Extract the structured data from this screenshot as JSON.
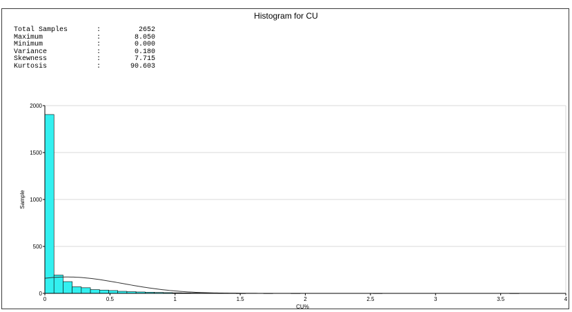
{
  "title": "Histogram for CU",
  "stats": [
    {
      "label": "Total Samples",
      "value": "2652"
    },
    {
      "label": "Maximum",
      "value": "8.050"
    },
    {
      "label": "Minimum",
      "value": "0.000"
    },
    {
      "label": "Variance",
      "value": "0.180"
    },
    {
      "label": "Skewness",
      "value": "7.715"
    },
    {
      "label": "Kurtosis",
      "value": "90.603"
    }
  ],
  "colors": {
    "bar_fill": "#33f0f0",
    "bar_stroke": "#000000",
    "grid": "#d8d8d8",
    "curve": "#333333"
  },
  "chart_data": {
    "type": "bar",
    "title": "Histogram for CU",
    "xlabel": "CU%",
    "ylabel": "Sample",
    "xlim": [
      0,
      4
    ],
    "ylim": [
      0,
      2000
    ],
    "x_ticks": [
      "0",
      "0.5",
      "1",
      "1.5",
      "2",
      "2.5",
      "3",
      "3.5",
      "4"
    ],
    "y_ticks": [
      "0",
      "500",
      "1000",
      "1500",
      "2000"
    ],
    "grid": true,
    "bin_width": 0.07,
    "bins": [
      {
        "x0": 0.0,
        "count": 1905
      },
      {
        "x0": 0.07,
        "count": 195
      },
      {
        "x0": 0.14,
        "count": 125
      },
      {
        "x0": 0.21,
        "count": 70
      },
      {
        "x0": 0.28,
        "count": 60
      },
      {
        "x0": 0.35,
        "count": 40
      },
      {
        "x0": 0.42,
        "count": 35
      },
      {
        "x0": 0.49,
        "count": 30
      },
      {
        "x0": 0.56,
        "count": 22
      },
      {
        "x0": 0.63,
        "count": 18
      },
      {
        "x0": 0.7,
        "count": 15
      },
      {
        "x0": 0.77,
        "count": 12
      },
      {
        "x0": 0.84,
        "count": 10
      },
      {
        "x0": 0.91,
        "count": 8
      },
      {
        "x0": 0.98,
        "count": 6
      },
      {
        "x0": 1.05,
        "count": 5
      },
      {
        "x0": 1.12,
        "count": 4
      },
      {
        "x0": 1.19,
        "count": 3
      },
      {
        "x0": 1.26,
        "count": 3
      },
      {
        "x0": 1.33,
        "count": 2
      },
      {
        "x0": 1.4,
        "count": 2
      },
      {
        "x0": 1.47,
        "count": 1
      },
      {
        "x0": 1.68,
        "count": 1
      },
      {
        "x0": 1.89,
        "count": 1
      },
      {
        "x0": 2.52,
        "count": 1
      },
      {
        "x0": 3.57,
        "count": 1
      }
    ],
    "normal_curve": {
      "mean": 0.17,
      "std": 0.4243,
      "n": 2652
    }
  }
}
